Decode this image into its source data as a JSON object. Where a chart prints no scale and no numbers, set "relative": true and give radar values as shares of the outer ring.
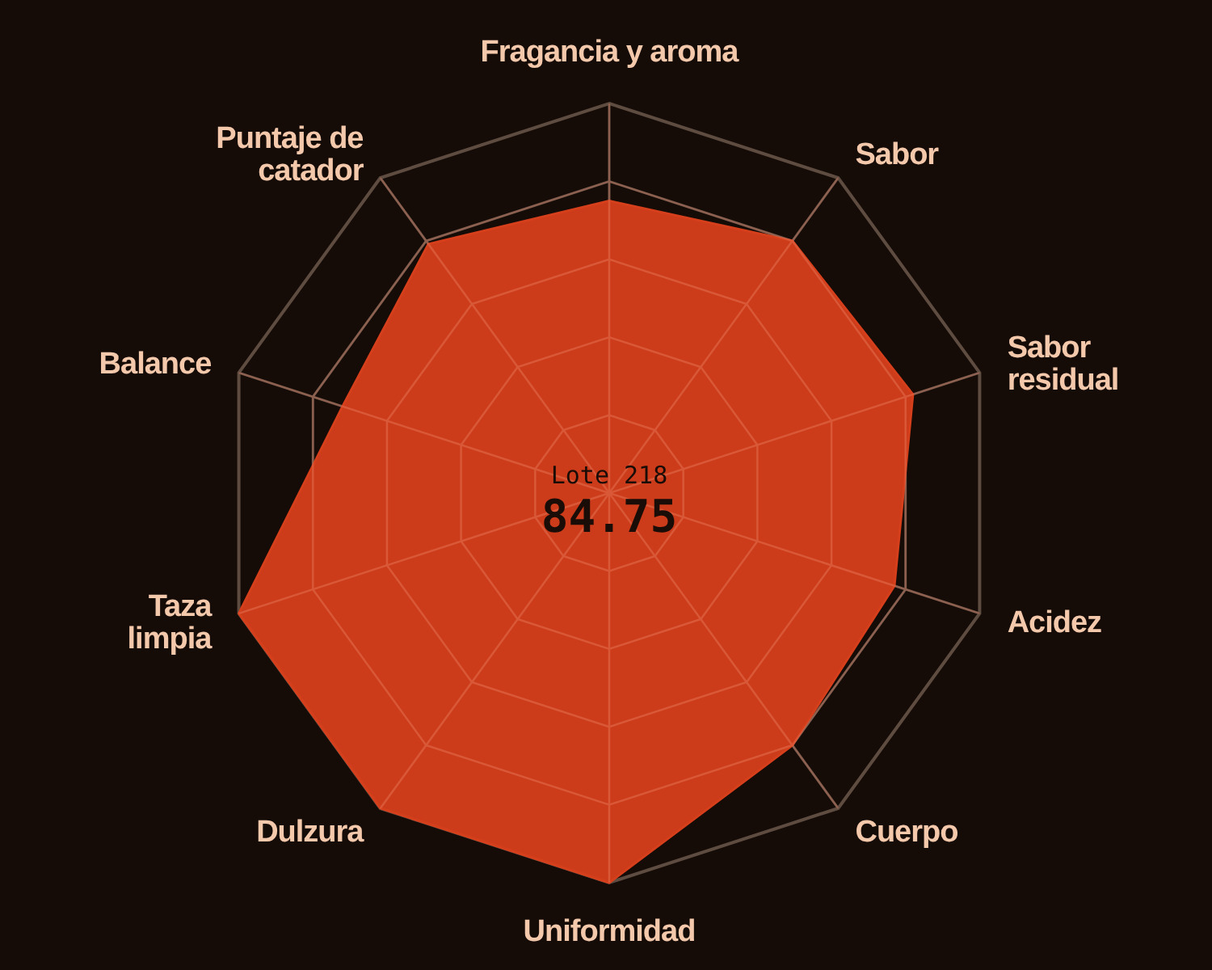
{
  "chart_data": {
    "type": "radar",
    "relative": true,
    "grid": true,
    "marker": "none",
    "categories": [
      "Fragancia y aroma",
      "Sabor",
      "Sabor residual",
      "Acidez",
      "Cuerpo",
      "Uniformidad",
      "Dulzura",
      "Taza limpia",
      "Balance",
      "Puntaje de catador"
    ],
    "series": [
      {
        "color": "#d63f1b",
        "values": [
          0.75,
          0.8,
          0.82,
          0.77,
          0.8,
          1.0,
          1.0,
          1.0,
          0.72,
          0.79
        ]
      }
    ],
    "annotations": [
      "Lote 218",
      "84.75"
    ]
  }
}
